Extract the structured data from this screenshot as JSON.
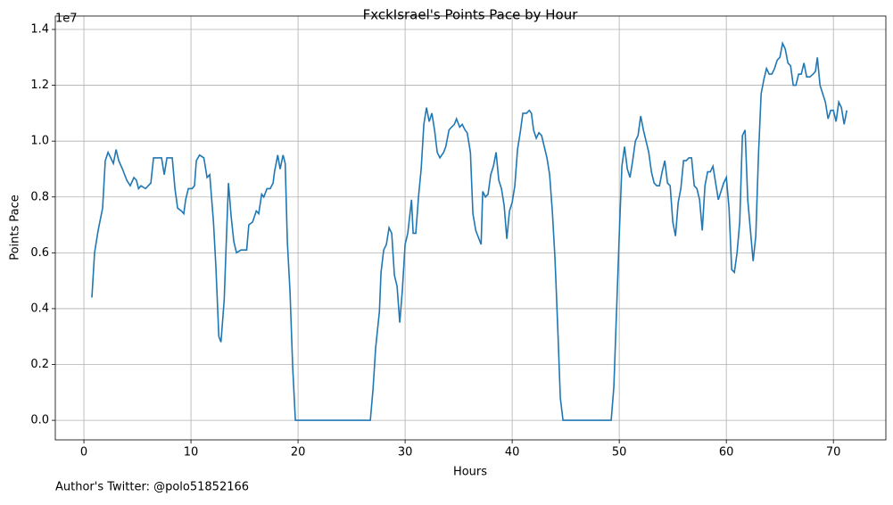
{
  "chart_data": {
    "type": "line",
    "title": "FxckIsrael's Points Pace by Hour",
    "x_label": "Hours",
    "y_label": "Points Pace",
    "y_offset_text": "1e7",
    "annotation": "Author's Twitter: @polo51852166",
    "grid": true,
    "xlim": [
      -2.67,
      74.9
    ],
    "xticks": [
      0,
      10,
      20,
      30,
      40,
      50,
      60,
      70
    ],
    "ylim": [
      -0.07,
      1.448
    ],
    "yticks": [
      {
        "value": 0,
        "label": "0.0"
      },
      0.2,
      0.4,
      0.6,
      0.8,
      {
        "value": 1,
        "label": "1.0"
      },
      1.2,
      1.4
    ],
    "series": [
      {
        "color": "#1f77b4",
        "x": [
          0.75,
          1.0,
          1.33,
          1.75,
          2.0,
          2.25,
          2.5,
          2.75,
          3.0,
          3.25,
          3.6,
          4.0,
          4.33,
          4.67,
          4.9,
          5.1,
          5.33,
          5.75,
          6.25,
          6.5,
          7.25,
          7.5,
          7.75,
          8.25,
          8.5,
          8.75,
          9.1,
          9.33,
          9.5,
          9.75,
          10.1,
          10.33,
          10.5,
          10.8,
          11.2,
          11.5,
          11.75,
          12.1,
          12.33,
          12.6,
          12.8,
          13.1,
          13.33,
          13.5,
          13.75,
          14.0,
          14.25,
          14.67,
          15.2,
          15.4,
          15.75,
          16.1,
          16.33,
          16.6,
          16.8,
          17.1,
          17.4,
          17.67,
          17.8,
          18.1,
          18.33,
          18.6,
          18.8,
          19.0,
          19.25,
          19.5,
          19.75,
          26.75,
          27.0,
          27.25,
          27.6,
          27.75,
          28.0,
          28.25,
          28.5,
          28.75,
          29.0,
          29.25,
          29.5,
          29.75,
          30.0,
          30.25,
          30.6,
          30.75,
          31.0,
          31.25,
          31.5,
          31.75,
          32.0,
          32.25,
          32.5,
          32.75,
          33.0,
          33.25,
          33.6,
          33.8,
          34.1,
          34.33,
          34.6,
          34.8,
          35.1,
          35.33,
          35.6,
          35.8,
          36.1,
          36.33,
          36.6,
          36.8,
          37.1,
          37.25,
          37.5,
          37.75,
          38.0,
          38.25,
          38.5,
          38.75,
          39.0,
          39.25,
          39.5,
          39.75,
          40.0,
          40.25,
          40.5,
          40.75,
          41.0,
          41.33,
          41.6,
          41.8,
          42.0,
          42.25,
          42.5,
          42.75,
          43.0,
          43.25,
          43.5,
          43.75,
          44.0,
          44.25,
          44.5,
          44.75,
          49.25,
          49.5,
          49.75,
          50.0,
          50.25,
          50.5,
          50.75,
          51.0,
          51.25,
          51.5,
          51.75,
          52.0,
          52.25,
          52.5,
          52.75,
          53.0,
          53.25,
          53.5,
          53.75,
          54.0,
          54.25,
          54.5,
          54.75,
          55.0,
          55.25,
          55.5,
          55.75,
          56.0,
          56.25,
          56.5,
          56.75,
          57.0,
          57.25,
          57.5,
          57.75,
          58.0,
          58.25,
          58.5,
          58.75,
          59.0,
          59.25,
          59.5,
          59.75,
          60.0,
          60.25,
          60.5,
          60.75,
          61.0,
          61.25,
          61.5,
          61.75,
          62.0,
          62.25,
          62.5,
          62.75,
          63.0,
          63.25,
          63.5,
          63.75,
          64.0,
          64.25,
          64.5,
          64.75,
          65.0,
          65.25,
          65.5,
          65.75,
          66.0,
          66.25,
          66.5,
          66.75,
          67.0,
          67.25,
          67.5,
          67.8,
          68.1,
          68.33,
          68.5,
          68.75,
          69.0,
          69.25,
          69.5,
          69.75,
          70.0,
          70.25,
          70.5,
          70.75,
          71.0,
          71.25
        ],
        "values": [
          0.44,
          0.6,
          0.68,
          0.76,
          0.93,
          0.96,
          0.94,
          0.92,
          0.97,
          0.93,
          0.9,
          0.86,
          0.84,
          0.87,
          0.86,
          0.83,
          0.84,
          0.83,
          0.85,
          0.94,
          0.94,
          0.88,
          0.94,
          0.94,
          0.83,
          0.76,
          0.75,
          0.74,
          0.79,
          0.83,
          0.83,
          0.84,
          0.93,
          0.95,
          0.94,
          0.87,
          0.88,
          0.71,
          0.55,
          0.3,
          0.28,
          0.43,
          0.67,
          0.85,
          0.73,
          0.64,
          0.6,
          0.61,
          0.61,
          0.7,
          0.71,
          0.75,
          0.74,
          0.81,
          0.8,
          0.83,
          0.83,
          0.85,
          0.89,
          0.95,
          0.9,
          0.95,
          0.92,
          0.64,
          0.46,
          0.19,
          0,
          0,
          0.11,
          0.26,
          0.39,
          0.53,
          0.61,
          0.63,
          0.69,
          0.67,
          0.52,
          0.48,
          0.35,
          0.47,
          0.63,
          0.67,
          0.79,
          0.67,
          0.67,
          0.8,
          0.9,
          1.06,
          1.12,
          1.07,
          1.1,
          1.04,
          0.96,
          0.94,
          0.96,
          0.98,
          1.04,
          1.05,
          1.06,
          1.08,
          1.05,
          1.06,
          1.04,
          1.03,
          0.96,
          0.74,
          0.68,
          0.66,
          0.63,
          0.82,
          0.8,
          0.81,
          0.88,
          0.91,
          0.96,
          0.86,
          0.83,
          0.77,
          0.65,
          0.75,
          0.78,
          0.84,
          0.97,
          1.03,
          1.1,
          1.1,
          1.11,
          1.1,
          1.04,
          1.01,
          1.03,
          1.02,
          0.98,
          0.94,
          0.88,
          0.75,
          0.58,
          0.34,
          0.08,
          0,
          0,
          0.12,
          0.39,
          0.66,
          0.91,
          0.98,
          0.9,
          0.87,
          0.93,
          1.0,
          1.02,
          1.09,
          1.04,
          1.0,
          0.96,
          0.89,
          0.85,
          0.84,
          0.84,
          0.89,
          0.93,
          0.85,
          0.84,
          0.71,
          0.66,
          0.78,
          0.83,
          0.93,
          0.93,
          0.94,
          0.94,
          0.84,
          0.83,
          0.79,
          0.68,
          0.84,
          0.89,
          0.89,
          0.91,
          0.85,
          0.79,
          0.82,
          0.85,
          0.87,
          0.76,
          0.54,
          0.53,
          0.6,
          0.71,
          1.02,
          1.04,
          0.79,
          0.68,
          0.57,
          0.66,
          0.95,
          1.17,
          1.22,
          1.26,
          1.24,
          1.24,
          1.26,
          1.29,
          1.3,
          1.35,
          1.33,
          1.28,
          1.27,
          1.2,
          1.2,
          1.24,
          1.24,
          1.28,
          1.23,
          1.23,
          1.24,
          1.25,
          1.3,
          1.2,
          1.17,
          1.14,
          1.08,
          1.11,
          1.11,
          1.07,
          1.14,
          1.12,
          1.06,
          1.11
        ]
      }
    ]
  }
}
